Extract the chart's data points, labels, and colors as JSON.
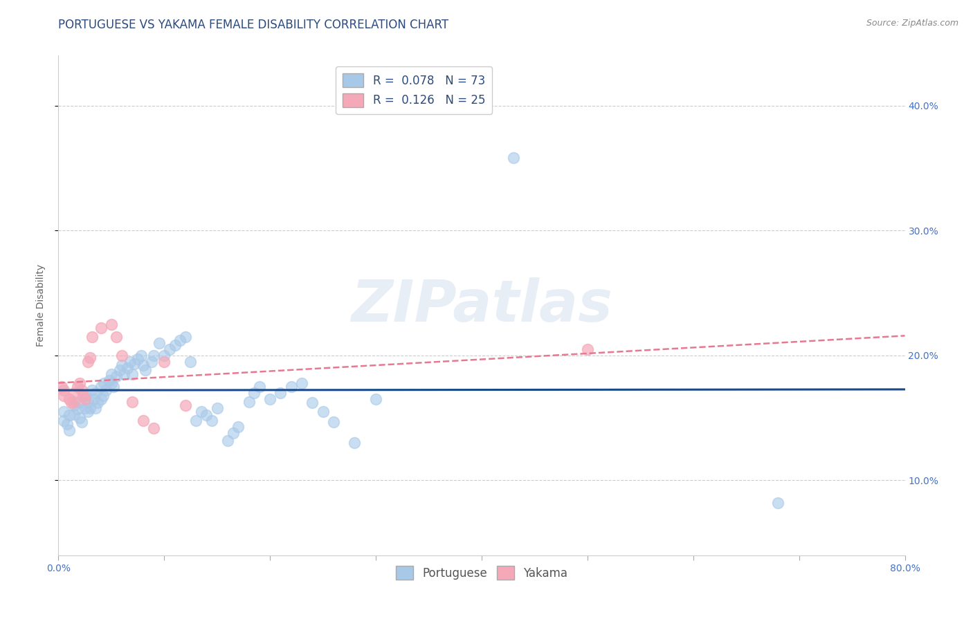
{
  "title": "PORTUGUESE VS YAKAMA FEMALE DISABILITY CORRELATION CHART",
  "source": "Source: ZipAtlas.com",
  "ylabel": "Female Disability",
  "yticks": [
    0.1,
    0.2,
    0.3,
    0.4
  ],
  "ytick_labels": [
    "10.0%",
    "20.0%",
    "30.0%",
    "40.0%"
  ],
  "xlim": [
    0.0,
    0.8
  ],
  "ylim": [
    0.04,
    0.44
  ],
  "legend_r1": "R =  0.078",
  "legend_n1": "N = 73",
  "legend_r2": "R =  0.126",
  "legend_n2": "N = 25",
  "portuguese_color": "#a8c8e8",
  "yakama_color": "#f4a8b8",
  "portuguese_line_color": "#1a4a8a",
  "yakama_line_color": "#e87890",
  "background_color": "#ffffff",
  "portuguese_x": [
    0.005,
    0.005,
    0.008,
    0.01,
    0.01,
    0.015,
    0.015,
    0.018,
    0.02,
    0.02,
    0.022,
    0.025,
    0.025,
    0.028,
    0.028,
    0.03,
    0.032,
    0.033,
    0.035,
    0.035,
    0.037,
    0.04,
    0.04,
    0.042,
    0.043,
    0.045,
    0.048,
    0.05,
    0.05,
    0.052,
    0.055,
    0.058,
    0.06,
    0.062,
    0.065,
    0.068,
    0.07,
    0.072,
    0.075,
    0.078,
    0.08,
    0.082,
    0.088,
    0.09,
    0.095,
    0.1,
    0.105,
    0.11,
    0.115,
    0.12,
    0.125,
    0.13,
    0.135,
    0.14,
    0.145,
    0.15,
    0.16,
    0.165,
    0.17,
    0.18,
    0.185,
    0.19,
    0.2,
    0.21,
    0.22,
    0.23,
    0.24,
    0.25,
    0.26,
    0.28,
    0.3,
    0.43,
    0.68
  ],
  "portuguese_y": [
    0.155,
    0.148,
    0.145,
    0.152,
    0.14,
    0.16,
    0.153,
    0.157,
    0.162,
    0.15,
    0.147,
    0.168,
    0.158,
    0.163,
    0.155,
    0.158,
    0.172,
    0.165,
    0.17,
    0.158,
    0.162,
    0.175,
    0.165,
    0.168,
    0.178,
    0.172,
    0.18,
    0.185,
    0.178,
    0.175,
    0.183,
    0.188,
    0.192,
    0.185,
    0.19,
    0.195,
    0.185,
    0.193,
    0.197,
    0.2,
    0.192,
    0.188,
    0.195,
    0.2,
    0.21,
    0.2,
    0.205,
    0.208,
    0.212,
    0.215,
    0.195,
    0.148,
    0.155,
    0.152,
    0.148,
    0.158,
    0.132,
    0.138,
    0.143,
    0.163,
    0.17,
    0.175,
    0.165,
    0.17,
    0.175,
    0.178,
    0.162,
    0.155,
    0.147,
    0.13,
    0.165,
    0.358,
    0.082
  ],
  "yakama_x": [
    0.003,
    0.005,
    0.005,
    0.01,
    0.012,
    0.015,
    0.015,
    0.018,
    0.02,
    0.022,
    0.023,
    0.025,
    0.028,
    0.03,
    0.032,
    0.04,
    0.05,
    0.055,
    0.06,
    0.07,
    0.08,
    0.09,
    0.1,
    0.12,
    0.5
  ],
  "yakama_y": [
    0.175,
    0.168,
    0.172,
    0.165,
    0.162,
    0.17,
    0.163,
    0.175,
    0.178,
    0.172,
    0.168,
    0.165,
    0.195,
    0.198,
    0.215,
    0.222,
    0.225,
    0.215,
    0.2,
    0.163,
    0.148,
    0.142,
    0.195,
    0.16,
    0.205
  ],
  "watermark": "ZIPatlas",
  "title_fontsize": 12,
  "axis_label_fontsize": 10,
  "tick_fontsize": 10,
  "legend_fontsize": 12
}
